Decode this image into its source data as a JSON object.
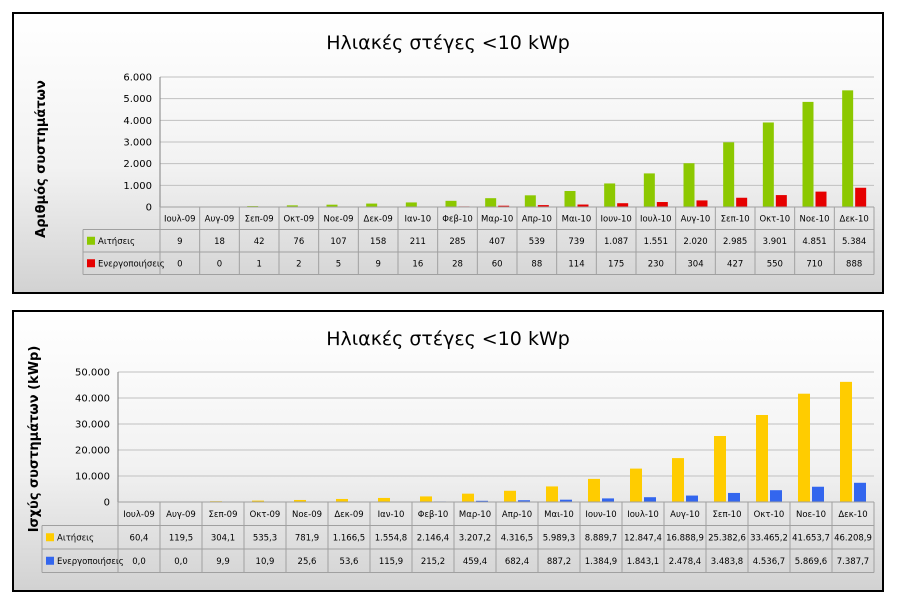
{
  "colors": {
    "green": "#8cc800",
    "red": "#e60000",
    "yellow": "#ffcc00",
    "blue": "#3366ee"
  },
  "chart_data": [
    {
      "type": "bar",
      "title": "Ηλιακές στέγες <10 kWp",
      "ylabel": "Αριθμός συστημάτων",
      "xlabel": "",
      "ylim": [
        0,
        6000
      ],
      "yticks": [
        "6.000",
        "5.000",
        "4.000",
        "3.000",
        "2.000",
        "1.000",
        "0"
      ],
      "ytick_values": [
        6000,
        5000,
        4000,
        3000,
        2000,
        1000,
        0
      ],
      "grid": true,
      "categories": [
        "Ιουλ-09",
        "Αυγ-09",
        "Σεπ-09",
        "Οκτ-09",
        "Νοε-09",
        "Δεκ-09",
        "Ιαν-10",
        "Φεβ-10",
        "Μαρ-10",
        "Απρ-10",
        "Μαι-10",
        "Ιουν-10",
        "Ιουλ-10",
        "Αυγ-10",
        "Σεπ-10",
        "Οκτ-10",
        "Νοε-10",
        "Δεκ-10"
      ],
      "series": [
        {
          "name": "Αιτήσεις",
          "color": "#8cc800",
          "values": [
            9,
            18,
            42,
            76,
            107,
            158,
            211,
            285,
            407,
            539,
            739,
            1087,
            1551,
            2020,
            2985,
            3901,
            4851,
            5384
          ],
          "labels": [
            "9",
            "18",
            "42",
            "76",
            "107",
            "158",
            "211",
            "285",
            "407",
            "539",
            "739",
            "1.087",
            "1.551",
            "2.020",
            "2.985",
            "3.901",
            "4.851",
            "5.384"
          ]
        },
        {
          "name": "Ενεργοποιήσεις",
          "color": "#e60000",
          "values": [
            0,
            0,
            1,
            2,
            5,
            9,
            16,
            28,
            60,
            88,
            114,
            175,
            230,
            304,
            427,
            550,
            710,
            888
          ],
          "labels": [
            "0",
            "0",
            "1",
            "2",
            "5",
            "9",
            "16",
            "28",
            "60",
            "88",
            "114",
            "175",
            "230",
            "304",
            "427",
            "550",
            "710",
            "888"
          ]
        }
      ]
    },
    {
      "type": "bar",
      "title": "Ηλιακές στέγες <10 kWp",
      "ylabel": "Ισχύς συστημάτων (kWp)",
      "xlabel": "",
      "ylim": [
        0,
        50000
      ],
      "yticks": [
        "50.000",
        "40.000",
        "30.000",
        "20.000",
        "10.000",
        "0"
      ],
      "ytick_values": [
        50000,
        40000,
        30000,
        20000,
        10000,
        0
      ],
      "grid": true,
      "categories": [
        "Ιουλ-09",
        "Αυγ-09",
        "Σεπ-09",
        "Οκτ-09",
        "Νοε-09",
        "Δεκ-09",
        "Ιαν-10",
        "Φεβ-10",
        "Μαρ-10",
        "Απρ-10",
        "Μαι-10",
        "Ιουν-10",
        "Ιουλ-10",
        "Αυγ-10",
        "Σεπ-10",
        "Οκτ-10",
        "Νοε-10",
        "Δεκ-10"
      ],
      "series": [
        {
          "name": "Αιτήσεις",
          "color": "#ffcc00",
          "values": [
            60.4,
            119.5,
            304.1,
            535.3,
            781.9,
            1166.5,
            1554.8,
            2146.4,
            3207.2,
            4316.5,
            5989.3,
            8889.7,
            12847.4,
            16888.9,
            25382.6,
            33465.2,
            41653.7,
            46208.9
          ],
          "labels": [
            "60,4",
            "119,5",
            "304,1",
            "535,3",
            "781,9",
            "1.166,5",
            "1.554,8",
            "2.146,4",
            "3.207,2",
            "4.316,5",
            "5.989,3",
            "8.889,7",
            "12.847,4",
            "16.888,9",
            "25.382,6",
            "33.465,2",
            "41.653,7",
            "46.208,9"
          ]
        },
        {
          "name": "Ενεργοποιήσεις",
          "color": "#3366ee",
          "values": [
            0.0,
            0.0,
            9.9,
            10.9,
            25.6,
            53.6,
            115.9,
            215.2,
            459.4,
            682.4,
            887.2,
            1384.9,
            1843.1,
            2478.4,
            3483.8,
            4536.7,
            5869.6,
            7387.7
          ],
          "labels": [
            "0,0",
            "0,0",
            "9,9",
            "10,9",
            "25,6",
            "53,6",
            "115,9",
            "215,2",
            "459,4",
            "682,4",
            "887,2",
            "1.384,9",
            "1.843,1",
            "2.478,4",
            "3.483,8",
            "4.536,7",
            "5.869,6",
            "7.387,7"
          ]
        }
      ]
    }
  ]
}
